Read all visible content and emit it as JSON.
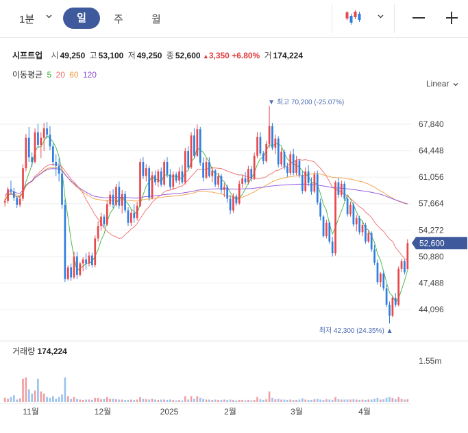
{
  "toolbar": {
    "interval": "1분",
    "tabs": [
      "일",
      "주",
      "월"
    ],
    "active_tab": "일",
    "scale_mode": "Linear"
  },
  "stock": {
    "name": "시프트업",
    "open_label": "시",
    "open": "49,250",
    "high_label": "고",
    "high": "53,100",
    "low_label": "저",
    "low": "49,250",
    "close_label": "종",
    "close": "52,600",
    "change": "3,350",
    "change_pct": "+6.80%",
    "volume_label": "거",
    "volume": "174,224"
  },
  "ma_legend": {
    "label": "이동평균",
    "periods": [
      {
        "value": "5",
        "color": "#3bb33b"
      },
      {
        "value": "20",
        "color": "#f06a6a"
      },
      {
        "value": "60",
        "color": "#f39c3c"
      },
      {
        "value": "120",
        "color": "#8a4bd8"
      }
    ]
  },
  "colors": {
    "up": "#e8474c",
    "down": "#2f7fe0",
    "up_vol": "#f0a0a4",
    "down_vol": "#9cc4ef",
    "price_tag": "#3f5a9c"
  },
  "volume_panel": {
    "label": "거래량",
    "value": "174,224",
    "axis_label": "1.55m"
  },
  "chart_data": {
    "type": "candlestick",
    "y_ticks": [
      "67,840",
      "64,448",
      "61,056",
      "57,664",
      "54,272",
      "50,880",
      "47,488",
      "44,096"
    ],
    "y_tick_values": [
      67840,
      64448,
      61056,
      57664,
      54272,
      50880,
      47488,
      44096
    ],
    "x_labels": [
      "11월",
      "12월",
      "2025",
      "2월",
      "3월",
      "4월"
    ],
    "current_price": "52,600",
    "annotations": {
      "high": {
        "text": "최고 70,200 (-25.07%)",
        "value": 70200
      },
      "low": {
        "text": "최저 42,300 (24.35%)",
        "value": 42300
      }
    },
    "volume_max_label": "1.55m",
    "volume_max": 1550000,
    "candles": [
      [
        57800,
        58300,
        57300,
        58000
      ],
      [
        58000,
        59800,
        57700,
        59500
      ],
      [
        59500,
        60600,
        58800,
        59200
      ],
      [
        59200,
        59700,
        58000,
        58400
      ],
      [
        58400,
        58600,
        57100,
        57500
      ],
      [
        57500,
        58700,
        57200,
        58300
      ],
      [
        58300,
        62700,
        58000,
        62200
      ],
      [
        62200,
        66600,
        61800,
        66100
      ],
      [
        66100,
        67500,
        63000,
        63600
      ],
      [
        63600,
        64200,
        62400,
        63000
      ],
      [
        63000,
        67300,
        62800,
        66800
      ],
      [
        66800,
        67900,
        64800,
        65200
      ],
      [
        65200,
        66800,
        63500,
        66100
      ],
      [
        66100,
        68000,
        64400,
        67300
      ],
      [
        67300,
        68100,
        66000,
        66500
      ],
      [
        66500,
        67600,
        64500,
        65000
      ],
      [
        65000,
        65400,
        62500,
        63000
      ],
      [
        63000,
        64000,
        61200,
        62500
      ],
      [
        62500,
        63500,
        60500,
        61500
      ],
      [
        61500,
        61900,
        57000,
        57500
      ],
      [
        57500,
        58200,
        47600,
        48000
      ],
      [
        48000,
        49800,
        47800,
        49500
      ],
      [
        49500,
        50000,
        47800,
        48200
      ],
      [
        48200,
        51500,
        48000,
        50900
      ],
      [
        50900,
        51500,
        48000,
        48500
      ],
      [
        48500,
        50200,
        48300,
        50000
      ],
      [
        50000,
        50800,
        49000,
        50500
      ],
      [
        50500,
        51300,
        49200,
        50000
      ],
      [
        50000,
        51500,
        49600,
        51000
      ],
      [
        51000,
        51400,
        49500,
        49800
      ],
      [
        49800,
        53600,
        49500,
        53200
      ],
      [
        53200,
        55400,
        52800,
        54800
      ],
      [
        54800,
        56500,
        54200,
        56000
      ],
      [
        56000,
        56300,
        54600,
        55000
      ],
      [
        55000,
        58100,
        54800,
        57600
      ],
      [
        57600,
        59300,
        57300,
        58800
      ],
      [
        58800,
        59500,
        57100,
        57500
      ],
      [
        57500,
        60200,
        57300,
        59800
      ],
      [
        59800,
        60500,
        57000,
        57400
      ],
      [
        57400,
        59400,
        56400,
        58900
      ],
      [
        58900,
        59300,
        56500,
        56800
      ],
      [
        56800,
        57200,
        54800,
        55200
      ],
      [
        55200,
        56900,
        54800,
        56500
      ],
      [
        56500,
        57600,
        55200,
        55800
      ],
      [
        55800,
        57900,
        55500,
        57400
      ],
      [
        57400,
        63400,
        57200,
        63000
      ],
      [
        63000,
        63600,
        60800,
        61200
      ],
      [
        61200,
        62700,
        60500,
        62200
      ],
      [
        62200,
        62500,
        58000,
        58400
      ],
      [
        58400,
        61800,
        58200,
        61300
      ],
      [
        61300,
        61900,
        60000,
        60400
      ],
      [
        60400,
        62100,
        59800,
        61800
      ],
      [
        61800,
        62300,
        59800,
        60100
      ],
      [
        60100,
        63300,
        59900,
        63000
      ],
      [
        63000,
        63600,
        61000,
        61400
      ],
      [
        61400,
        62100,
        59500,
        59800
      ],
      [
        59800,
        61800,
        59400,
        61400
      ],
      [
        61400,
        61700,
        60300,
        60600
      ],
      [
        60600,
        62300,
        60100,
        61800
      ],
      [
        61800,
        62600,
        60200,
        60400
      ],
      [
        60400,
        64800,
        60100,
        64400
      ],
      [
        64400,
        65000,
        62000,
        62300
      ],
      [
        62300,
        66800,
        62100,
        66400
      ],
      [
        66400,
        67300,
        63500,
        63800
      ],
      [
        63800,
        67800,
        63600,
        67200
      ],
      [
        67200,
        67500,
        62500,
        62900
      ],
      [
        62900,
        63600,
        60500,
        61000
      ],
      [
        61000,
        63500,
        60800,
        63000
      ],
      [
        63000,
        63600,
        61000,
        61200
      ],
      [
        61200,
        62400,
        60400,
        61900
      ],
      [
        61900,
        62100,
        59800,
        60100
      ],
      [
        60100,
        61600,
        59700,
        61200
      ],
      [
        61200,
        61500,
        59000,
        59400
      ],
      [
        59400,
        60300,
        58500,
        59800
      ],
      [
        59800,
        60100,
        57800,
        58300
      ],
      [
        58300,
        58800,
        56300,
        56800
      ],
      [
        56800,
        59000,
        56500,
        58600
      ],
      [
        58600,
        58900,
        57400,
        57700
      ],
      [
        57700,
        60600,
        57500,
        60200
      ],
      [
        60200,
        61300,
        59700,
        60900
      ],
      [
        60900,
        61700,
        60100,
        60400
      ],
      [
        60400,
        62500,
        60100,
        62100
      ],
      [
        62100,
        62500,
        60500,
        60900
      ],
      [
        60900,
        64200,
        60700,
        63800
      ],
      [
        63800,
        66800,
        63500,
        66200
      ],
      [
        66200,
        66800,
        63800,
        64100
      ],
      [
        64100,
        64400,
        62700,
        63100
      ],
      [
        63100,
        65700,
        62900,
        65300
      ],
      [
        65300,
        70200,
        64800,
        67600
      ],
      [
        67600,
        68000,
        64500,
        64800
      ],
      [
        64800,
        66500,
        64000,
        66000
      ],
      [
        66000,
        66300,
        62300,
        62700
      ],
      [
        62700,
        64800,
        62400,
        64300
      ],
      [
        64300,
        64600,
        62000,
        62400
      ],
      [
        62400,
        62900,
        61100,
        61600
      ],
      [
        61600,
        64400,
        61300,
        64000
      ],
      [
        64000,
        64700,
        61300,
        61600
      ],
      [
        61600,
        63800,
        61300,
        63200
      ],
      [
        63200,
        63400,
        61000,
        61300
      ],
      [
        61300,
        61800,
        58900,
        59300
      ],
      [
        59300,
        62300,
        59100,
        61800
      ],
      [
        61800,
        62600,
        59900,
        60300
      ],
      [
        60300,
        61000,
        58800,
        59200
      ],
      [
        59200,
        61800,
        59000,
        61400
      ],
      [
        61400,
        61900,
        57500,
        57800
      ],
      [
        57800,
        58300,
        55500,
        56000
      ],
      [
        56000,
        56200,
        53300,
        53500
      ],
      [
        53500,
        55600,
        53200,
        55200
      ],
      [
        55200,
        55400,
        52500,
        52800
      ],
      [
        52800,
        53400,
        50900,
        51300
      ],
      [
        51300,
        60600,
        51000,
        60400
      ],
      [
        60400,
        61000,
        58400,
        58800
      ],
      [
        58800,
        60600,
        58500,
        60200
      ],
      [
        60200,
        60500,
        58000,
        58300
      ],
      [
        58300,
        58500,
        56000,
        56300
      ],
      [
        56300,
        57900,
        56000,
        57500
      ],
      [
        57500,
        57800,
        54700,
        55000
      ],
      [
        55000,
        56200,
        54100,
        55800
      ],
      [
        55800,
        56100,
        53700,
        54000
      ],
      [
        54000,
        55300,
        53500,
        54900
      ],
      [
        54900,
        55200,
        52500,
        52800
      ],
      [
        52800,
        54300,
        52600,
        53900
      ],
      [
        53900,
        54100,
        51500,
        51800
      ],
      [
        51800,
        52400,
        49800,
        50100
      ],
      [
        50100,
        50500,
        47300,
        47600
      ],
      [
        47600,
        48900,
        47000,
        48700
      ],
      [
        48700,
        49000,
        46500,
        46800
      ],
      [
        46800,
        47300,
        44400,
        44700
      ],
      [
        44700,
        45100,
        42300,
        43300
      ],
      [
        43300,
        45800,
        43100,
        45600
      ],
      [
        45600,
        46200,
        44400,
        44700
      ],
      [
        44700,
        49600,
        44500,
        49300
      ],
      [
        49300,
        50600,
        48900,
        50300
      ],
      [
        50300,
        50500,
        48600,
        48900
      ],
      [
        49250,
        53100,
        49250,
        52600
      ]
    ],
    "volume": [
      0.1,
      0.08,
      0.12,
      0.16,
      0.06,
      0.09,
      0.55,
      0.58,
      0.3,
      0.2,
      0.27,
      0.55,
      0.25,
      0.2,
      0.12,
      0.1,
      0.14,
      0.08,
      0.12,
      0.18,
      0.58,
      0.14,
      0.08,
      0.12,
      0.08,
      0.06,
      0.05,
      0.06,
      0.06,
      0.05,
      0.1,
      0.1,
      0.07,
      0.08,
      0.12,
      0.08,
      0.08,
      0.07,
      0.06,
      0.06,
      0.05,
      0.05,
      0.06,
      0.05,
      0.06,
      0.12,
      0.08,
      0.07,
      0.06,
      0.08,
      0.06,
      0.05,
      0.06,
      0.06,
      0.05,
      0.06,
      0.05,
      0.04,
      0.05,
      0.04,
      0.14,
      0.06,
      0.14,
      0.08,
      0.14,
      0.1,
      0.08,
      0.06,
      0.06,
      0.05,
      0.06,
      0.05,
      0.05,
      0.06,
      0.05,
      0.06,
      0.05,
      0.04,
      0.05,
      0.05,
      0.04,
      0.05,
      0.04,
      0.05,
      0.12,
      0.07,
      0.05,
      0.07,
      0.25,
      0.1,
      0.07,
      0.08,
      0.06,
      0.06,
      0.05,
      0.06,
      0.05,
      0.05,
      0.06,
      0.09,
      0.06,
      0.05,
      0.05,
      0.07,
      0.08,
      0.06,
      0.05,
      0.07,
      0.06,
      0.05,
      0.12,
      0.07,
      0.06,
      0.06,
      0.06,
      0.06,
      0.07,
      0.06,
      0.05,
      0.06,
      0.05,
      0.06,
      0.06,
      0.08,
      0.1,
      0.06,
      0.07,
      0.1,
      0.12,
      0.1,
      0.07,
      0.12,
      0.08,
      0.06,
      0.07
    ]
  }
}
